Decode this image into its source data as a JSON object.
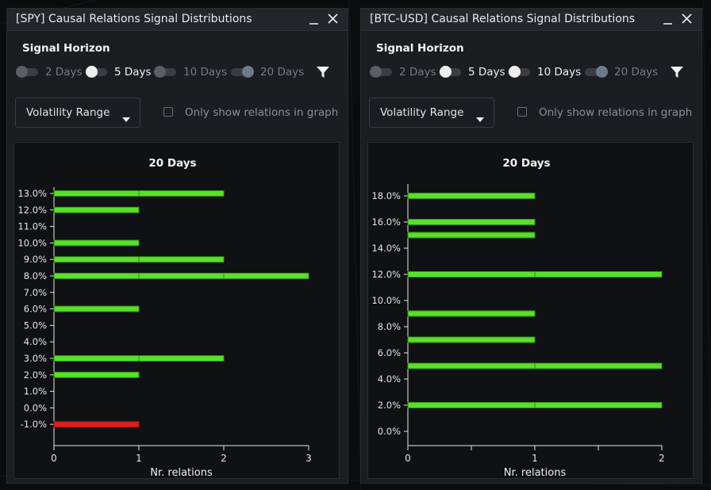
{
  "colors": {
    "positive_bar": "#59e02a",
    "positive_bar_border": "#2f8c12",
    "negative_bar": "#e21b1b",
    "axis": "#e6e6e6",
    "tick_text": "#e6e6e6"
  },
  "panels": [
    {
      "title": "[SPY] Causal Relations Signal Distributions",
      "signal_horizon_label": "Signal Horizon",
      "toggles": [
        {
          "label": "2 Days",
          "state": "off"
        },
        {
          "label": "5 Days",
          "state": "on"
        },
        {
          "label": "10 Days",
          "state": "off"
        },
        {
          "label": "20 Days",
          "state": "dim"
        }
      ],
      "dropdown_value": "Volatility Range",
      "checkbox_label": "Only show relations in graph",
      "icons": {
        "minimize": "minimize-icon",
        "close": "close-icon",
        "filter": "filter-icon",
        "dropdown": "chevron-down-icon"
      }
    },
    {
      "title": "[BTC-USD] Causal Relations Signal Distributions",
      "signal_horizon_label": "Signal Horizon",
      "toggles": [
        {
          "label": "2 Days",
          "state": "off"
        },
        {
          "label": "5 Days",
          "state": "on"
        },
        {
          "label": "10 Days",
          "state": "on"
        },
        {
          "label": "20 Days",
          "state": "dim"
        }
      ],
      "dropdown_value": "Volatility Range",
      "checkbox_label": "Only show relations in graph",
      "icons": {
        "minimize": "minimize-icon",
        "close": "close-icon",
        "filter": "filter-icon",
        "dropdown": "chevron-down-icon"
      }
    }
  ],
  "chart_data": [
    {
      "type": "bar",
      "orientation": "horizontal",
      "title": "20 Days",
      "xlabel": "Nr. relations",
      "ylabel": "",
      "categories": [
        "13.0%",
        "12.0%",
        "11.0%",
        "10.0%",
        "9.0%",
        "8.0%",
        "7.0%",
        "6.0%",
        "5.0%",
        "4.0%",
        "3.0%",
        "2.0%",
        "1.0%",
        "0.0%",
        "-1.0%"
      ],
      "values": [
        2,
        1,
        0,
        1,
        2,
        3,
        0,
        1,
        0,
        0,
        2,
        1,
        0,
        0,
        1
      ],
      "xlim": [
        0,
        3
      ],
      "xticks": [
        "0",
        "1",
        "2",
        "3"
      ],
      "grid": false
    },
    {
      "type": "bar",
      "orientation": "horizontal",
      "title": "20 Days",
      "xlabel": "Nr. relations",
      "ylabel": "",
      "y_axis_ticks": [
        "18.0%",
        "16.0%",
        "14.0%",
        "12.0%",
        "10.0%",
        "8.0%",
        "6.0%",
        "4.0%",
        "2.0%",
        "0.0%"
      ],
      "bars": [
        {
          "y": 18,
          "value": 1
        },
        {
          "y": 16,
          "value": 1
        },
        {
          "y": 15,
          "value": 1
        },
        {
          "y": 12,
          "value": 2
        },
        {
          "y": 9,
          "value": 1
        },
        {
          "y": 7,
          "value": 1
        },
        {
          "y": 5,
          "value": 2
        },
        {
          "y": 2,
          "value": 2
        }
      ],
      "ylim": [
        0,
        18
      ],
      "xlim": [
        0,
        2
      ],
      "xticks": [
        "0",
        "1",
        "2"
      ],
      "grid": false
    }
  ]
}
